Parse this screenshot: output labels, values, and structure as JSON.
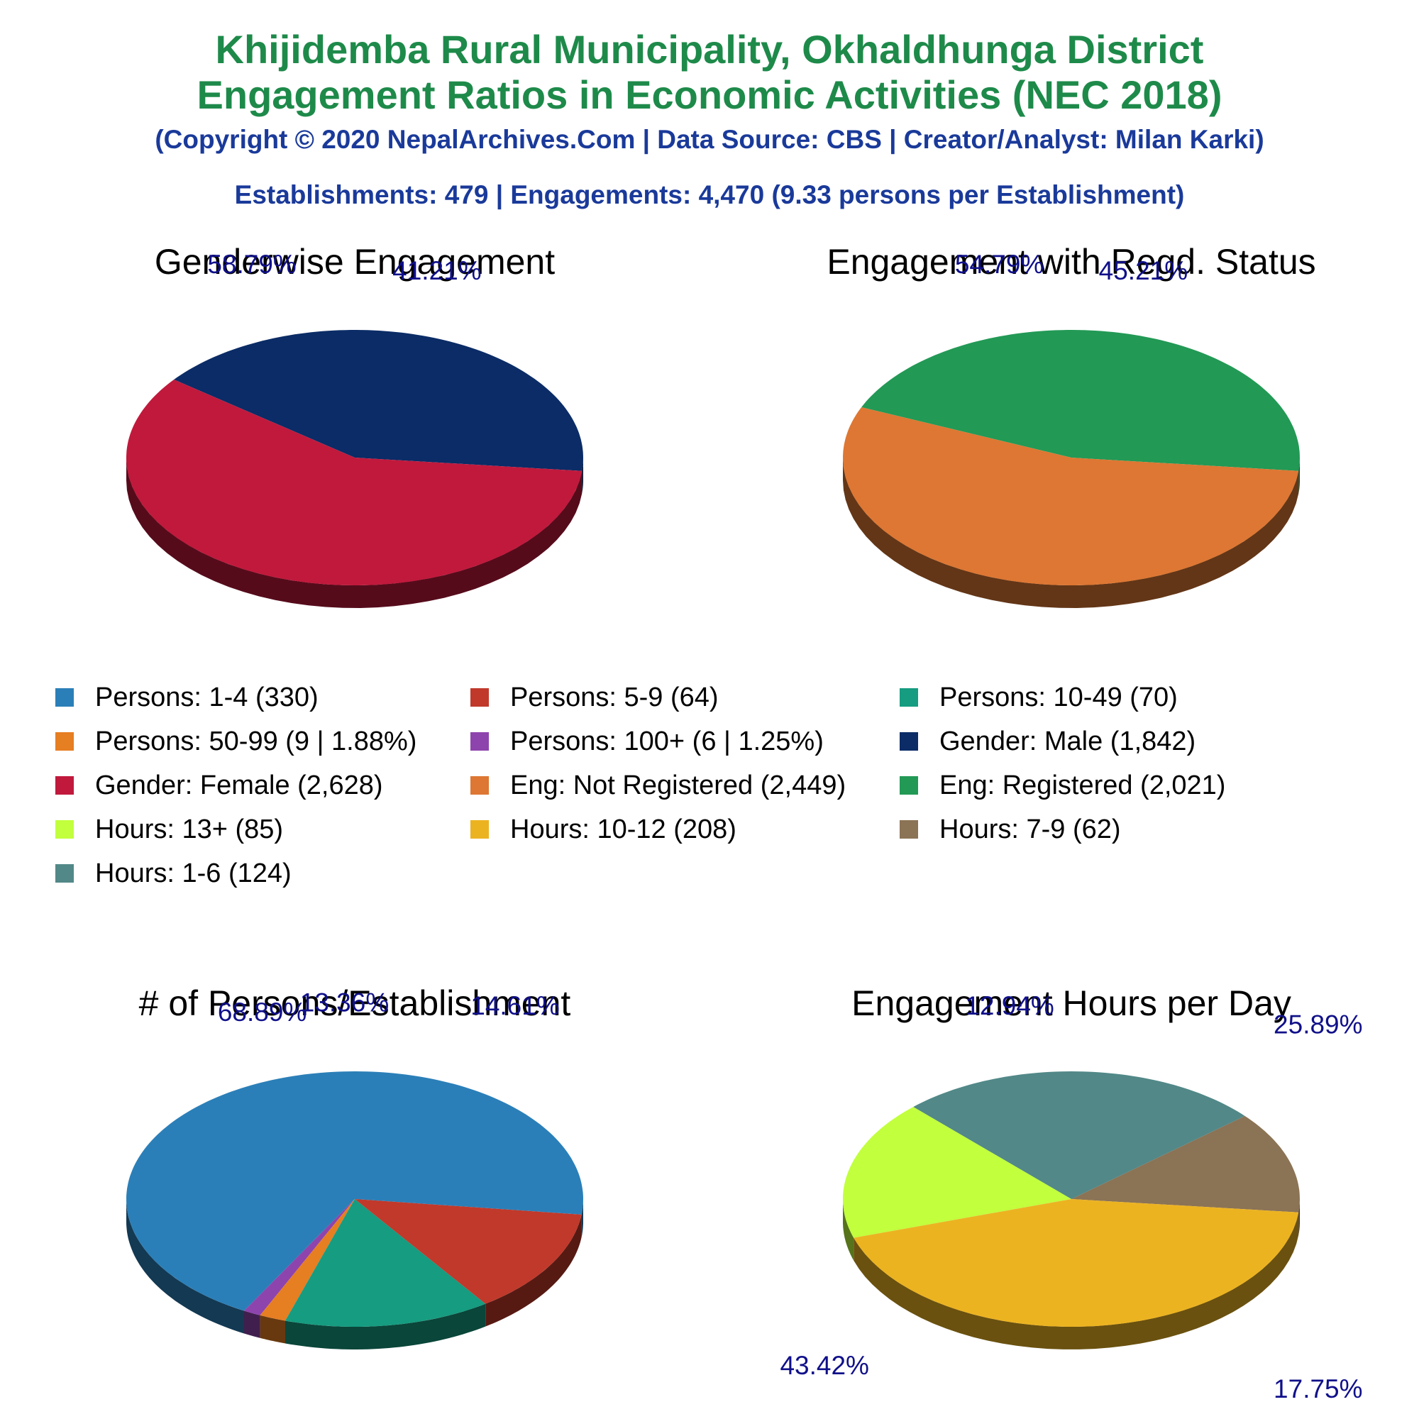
{
  "header": {
    "title_line1": "Khijidemba Rural Municipality, Okhaldhunga District",
    "title_line2": "Engagement Ratios in Economic Activities (NEC 2018)",
    "copyright": "(Copyright © 2020 NepalArchives.Com | Data Source: CBS | Creator/Analyst: Milan Karki)",
    "summary": "Establishments: 479 | Engagements: 4,470 (9.33 persons per Establishment)"
  },
  "legend": [
    {
      "label": "Persons: 1-4 (330)",
      "color": "#2b7fb8"
    },
    {
      "label": "Persons: 5-9 (64)",
      "color": "#c0392b"
    },
    {
      "label": "Persons: 10-49 (70)",
      "color": "#169c80"
    },
    {
      "label": "Persons: 50-99 (9 | 1.88%)",
      "color": "#e67e22"
    },
    {
      "label": "Persons: 100+ (6 | 1.25%)",
      "color": "#8e44ad"
    },
    {
      "label": "Gender: Male (1,842)",
      "color": "#0b2c66"
    },
    {
      "label": "Gender: Female (2,628)",
      "color": "#c0193c"
    },
    {
      "label": "Eng: Not Registered (2,449)",
      "color": "#dd7733"
    },
    {
      "label": "Eng: Registered (2,021)",
      "color": "#229955"
    },
    {
      "label": "Hours: 13+ (85)",
      "color": "#c2ff3d"
    },
    {
      "label": "Hours: 10-12 (208)",
      "color": "#ecb321"
    },
    {
      "label": "Hours: 7-9 (62)",
      "color": "#8b7355"
    },
    {
      "label": "Hours: 1-6 (124)",
      "color": "#528888"
    }
  ],
  "chart_data": [
    {
      "type": "pie",
      "title": "Genderwise Engagement",
      "slices": [
        {
          "name": "Gender: Male",
          "value": 1842,
          "pct_label": "41.21%",
          "color": "#0b2c66"
        },
        {
          "name": "Gender: Female",
          "value": 2628,
          "pct_label": "58.79%",
          "color": "#c0193c"
        }
      ]
    },
    {
      "type": "pie",
      "title": "Engagement with Regd. Status",
      "slices": [
        {
          "name": "Eng: Registered",
          "value": 2021,
          "pct_label": "45.21%",
          "color": "#229955"
        },
        {
          "name": "Eng: Not Registered",
          "value": 2449,
          "pct_label": "54.79%",
          "color": "#dd7733"
        }
      ]
    },
    {
      "type": "pie",
      "title": "# of Persons/Establishment",
      "slices": [
        {
          "name": "Persons: 1-4",
          "value": 330,
          "pct_label": "68.89%",
          "color": "#2b7fb8"
        },
        {
          "name": "Persons: 100+",
          "value": 6,
          "pct_label": "",
          "color": "#8e44ad"
        },
        {
          "name": "Persons: 50-99",
          "value": 9,
          "pct_label": "",
          "color": "#e67e22"
        },
        {
          "name": "Persons: 10-49",
          "value": 70,
          "pct_label": "14.61%",
          "color": "#169c80"
        },
        {
          "name": "Persons: 5-9",
          "value": 64,
          "pct_label": "13.36%",
          "color": "#c0392b"
        }
      ]
    },
    {
      "type": "pie",
      "title": "Engagement Hours per Day",
      "slices": [
        {
          "name": "Hours: 7-9",
          "value": 62,
          "pct_label": "12.94%",
          "color": "#8b7355"
        },
        {
          "name": "Hours: 1-6",
          "value": 124,
          "pct_label": "25.89%",
          "color": "#528888"
        },
        {
          "name": "Hours: 13+",
          "value": 85,
          "pct_label": "17.75%",
          "color": "#c2ff3d"
        },
        {
          "name": "Hours: 10-12",
          "value": 208,
          "pct_label": "43.42%",
          "color": "#ecb321"
        }
      ]
    }
  ]
}
